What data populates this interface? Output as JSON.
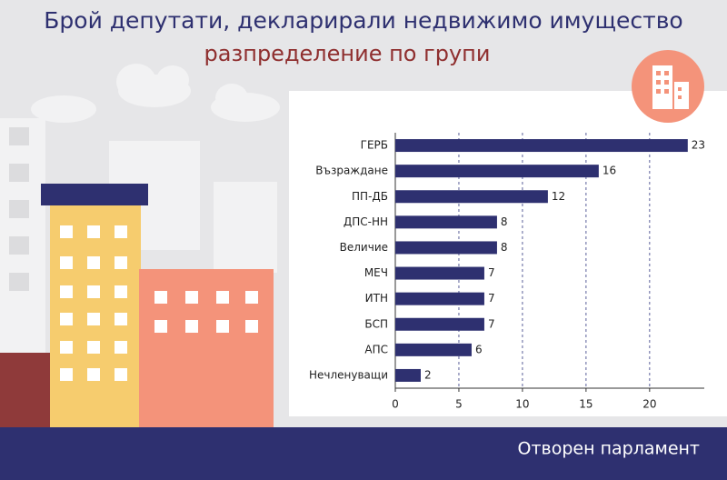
{
  "chart_data": {
    "type": "barh",
    "title": "Брой депутати, декларирали недвижимо имущество",
    "subtitle": "разпределение по групи",
    "categories": [
      "ГЕРБ",
      "Възраждане",
      "ПП-ДБ",
      "ДПС-НН",
      "Величие",
      "МЕЧ",
      "ИТН",
      "БСП",
      "АПС",
      "Нечленуващи"
    ],
    "values": [
      23,
      16,
      12,
      8,
      8,
      7,
      7,
      7,
      6,
      2
    ],
    "color": "#2e3070",
    "xlim": [
      0,
      24.3
    ],
    "xticks": [
      0,
      5,
      10,
      15,
      20
    ],
    "grid": true
  },
  "footer": "Отворен парламент"
}
